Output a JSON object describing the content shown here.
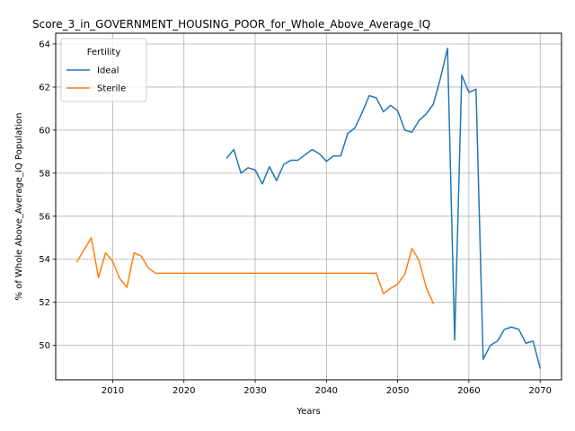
{
  "chart_data": {
    "type": "line",
    "title": "Score_3_in_GOVERNMENT_HOUSING_POOR_for_Whole_Above_Average_IQ",
    "xlabel": "Years",
    "ylabel": "% of Whole Above_Average_IQ Population",
    "xlim": [
      2002,
      2073
    ],
    "ylim": [
      48.4,
      64.5
    ],
    "xticks": [
      2010,
      2020,
      2030,
      2040,
      2050,
      2060,
      2070
    ],
    "yticks": [
      50,
      52,
      54,
      56,
      58,
      60,
      62,
      64
    ],
    "grid": true,
    "legend": {
      "title": "Fertility",
      "placement": "upper-left"
    },
    "series": [
      {
        "name": "Ideal",
        "color": "#1f77b4",
        "x": [
          2026,
          2027,
          2028,
          2029,
          2030,
          2031,
          2032,
          2033,
          2034,
          2035,
          2036,
          2037,
          2038,
          2039,
          2040,
          2041,
          2042,
          2043,
          2044,
          2045,
          2046,
          2047,
          2048,
          2049,
          2050,
          2051,
          2052,
          2053,
          2054,
          2055,
          2056,
          2057,
          2058,
          2059,
          2060,
          2061,
          2062,
          2063,
          2064,
          2065,
          2066,
          2067,
          2068,
          2069,
          2070
        ],
        "values": [
          58.7,
          59.1,
          58.0,
          58.25,
          58.15,
          57.5,
          58.3,
          57.65,
          58.4,
          58.6,
          58.6,
          58.85,
          59.1,
          58.9,
          58.55,
          58.8,
          58.8,
          59.85,
          60.1,
          60.8,
          61.6,
          61.5,
          60.85,
          61.15,
          60.9,
          60.0,
          59.9,
          60.45,
          60.75,
          61.2,
          62.4,
          63.8,
          50.25,
          62.55,
          61.75,
          61.9,
          49.35,
          50.0,
          50.2,
          50.75,
          50.85,
          50.75,
          50.1,
          50.2,
          48.95
        ]
      },
      {
        "name": "Sterile",
        "color": "#ff7f0e",
        "x": [
          2005,
          2006,
          2007,
          2008,
          2009,
          2010,
          2011,
          2012,
          2013,
          2014,
          2015,
          2016,
          2017,
          2018,
          2019,
          2020,
          2021,
          2022,
          2023,
          2024,
          2025,
          2026,
          2027,
          2028,
          2029,
          2030,
          2031,
          2032,
          2033,
          2034,
          2035,
          2036,
          2037,
          2038,
          2039,
          2040,
          2041,
          2042,
          2043,
          2044,
          2045,
          2046,
          2047,
          2048,
          2049,
          2050,
          2051,
          2052,
          2053,
          2054,
          2055
        ],
        "values": [
          53.9,
          54.45,
          55.0,
          53.15,
          54.3,
          53.9,
          53.1,
          52.7,
          54.3,
          54.15,
          53.6,
          53.35,
          53.35,
          53.35,
          53.35,
          53.35,
          53.35,
          53.35,
          53.35,
          53.35,
          53.35,
          53.35,
          53.35,
          53.35,
          53.35,
          53.35,
          53.35,
          53.35,
          53.35,
          53.35,
          53.35,
          53.35,
          53.35,
          53.35,
          53.35,
          53.35,
          53.35,
          53.35,
          53.35,
          53.35,
          53.35,
          53.35,
          53.35,
          52.4,
          52.65,
          52.85,
          53.3,
          54.5,
          53.95,
          52.7,
          51.95
        ]
      }
    ]
  }
}
